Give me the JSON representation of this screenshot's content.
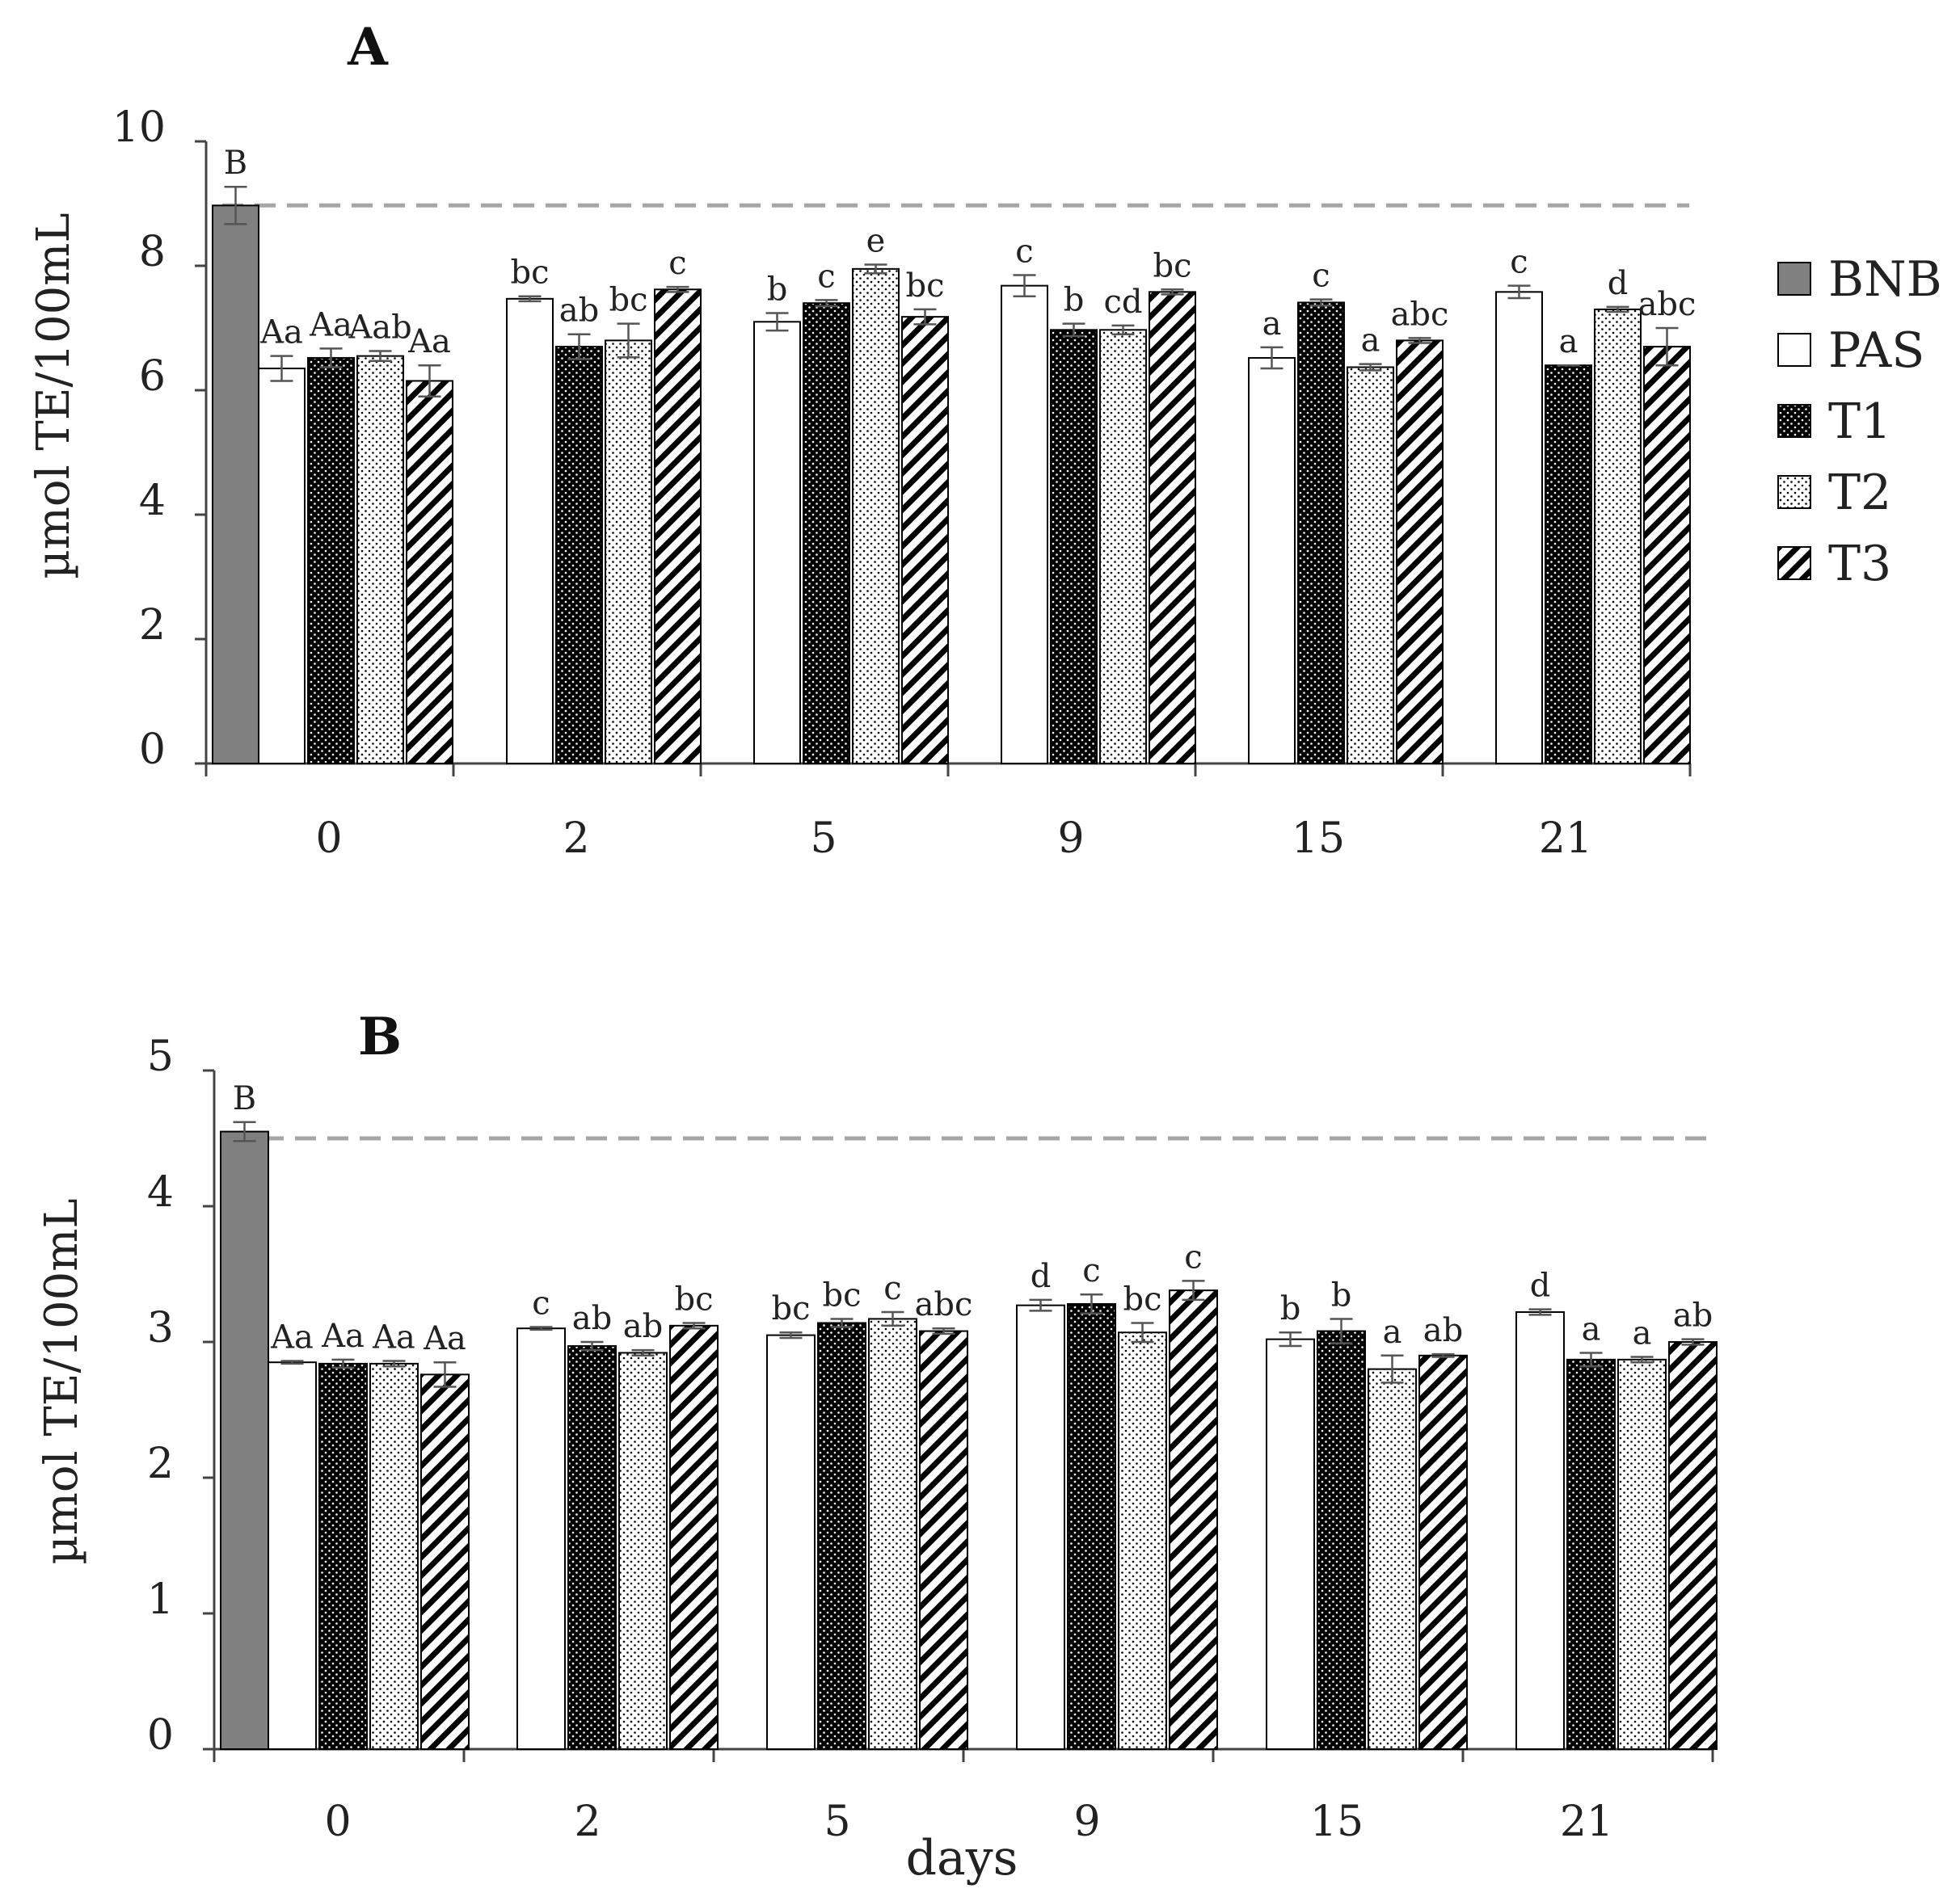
{
  "chart_data": [
    {
      "type": "bar",
      "title": "A",
      "xlabel": "",
      "ylabel": "µmol TE/100mL",
      "ylim": [
        0,
        10
      ],
      "yticks": [
        "0",
        "2",
        "4",
        "6",
        "8",
        "10"
      ],
      "categories": [
        "0",
        "2",
        "5",
        "9",
        "15",
        "21"
      ],
      "reference_line": 8.97,
      "baseline": {
        "name": "BNB",
        "category": "0",
        "value": 8.97,
        "error": 0.3,
        "letter": "B"
      },
      "series": [
        {
          "name": "PAS",
          "values": [
            6.35,
            7.47,
            7.1,
            7.68,
            6.52,
            7.58
          ],
          "errors": [
            0.2,
            0.04,
            0.14,
            0.17,
            0.17,
            0.1
          ],
          "letters": [
            "Aa",
            "bc",
            "b",
            "c",
            "a",
            "c"
          ]
        },
        {
          "name": "T1",
          "values": [
            6.52,
            6.7,
            7.4,
            6.97,
            7.41,
            6.4
          ],
          "errors": [
            0.15,
            0.2,
            0.05,
            0.1,
            0.05,
            0.0
          ],
          "letters": [
            "Aa",
            "ab",
            "c",
            "b",
            "c",
            "a"
          ]
        },
        {
          "name": "T2",
          "values": [
            6.55,
            6.8,
            7.95,
            6.97,
            6.37,
            7.3
          ],
          "errors": [
            0.08,
            0.27,
            0.07,
            0.07,
            0.05,
            0.04
          ],
          "letters": [
            "Aab",
            "bc",
            "e",
            "cd",
            "a",
            "d"
          ]
        },
        {
          "name": "T3",
          "values": [
            6.15,
            7.62,
            7.18,
            7.58,
            6.8,
            6.7
          ],
          "errors": [
            0.25,
            0.04,
            0.12,
            0.04,
            0.04,
            0.3
          ],
          "letters": [
            "Aa",
            "c",
            "bc",
            "bc",
            "abc",
            "abc"
          ]
        }
      ]
    },
    {
      "type": "bar",
      "title": "B",
      "xlabel": "days",
      "ylabel": "µmol TE/100mL",
      "ylim": [
        0,
        5
      ],
      "yticks": [
        "0",
        "1",
        "2",
        "3",
        "4",
        "5"
      ],
      "categories": [
        "0",
        "2",
        "5",
        "9",
        "15",
        "21"
      ],
      "reference_line": 4.5,
      "baseline": {
        "name": "BNB",
        "category": "0",
        "value": 4.55,
        "error": 0.07,
        "letter": "B"
      },
      "series": [
        {
          "name": "PAS",
          "values": [
            2.85,
            3.1,
            3.05,
            3.27,
            3.02,
            3.22
          ],
          "errors": [
            0.01,
            0.01,
            0.02,
            0.04,
            0.05,
            0.02
          ],
          "letters": [
            "Aa",
            "c",
            "bc",
            "d",
            "b",
            "d"
          ]
        },
        {
          "name": "T1",
          "values": [
            2.84,
            2.97,
            3.14,
            3.28,
            3.08,
            2.87
          ],
          "errors": [
            0.03,
            0.03,
            0.03,
            0.07,
            0.09,
            0.05
          ],
          "letters": [
            "Aa",
            "ab",
            "bc",
            "c",
            "b",
            "a"
          ]
        },
        {
          "name": "T2",
          "values": [
            2.84,
            2.92,
            3.17,
            3.07,
            2.8,
            2.87
          ],
          "errors": [
            0.02,
            0.02,
            0.05,
            0.07,
            0.1,
            0.02
          ],
          "letters": [
            "Aa",
            "ab",
            "c",
            "bc",
            "a",
            "a"
          ]
        },
        {
          "name": "T3",
          "values": [
            2.76,
            3.12,
            3.08,
            3.38,
            2.9,
            3.0
          ],
          "errors": [
            0.09,
            0.02,
            0.02,
            0.07,
            0.01,
            0.02
          ],
          "letters": [
            "Aa",
            "bc",
            "abc",
            "c",
            "ab",
            "ab"
          ]
        }
      ]
    }
  ],
  "legend": [
    {
      "label": "BNB",
      "pattern": "solid-gray"
    },
    {
      "label": "PAS",
      "pattern": "white"
    },
    {
      "label": "T1",
      "pattern": "black-dots"
    },
    {
      "label": "T2",
      "pattern": "white-dots"
    },
    {
      "label": "T3",
      "pattern": "diagonal-stripes"
    }
  ],
  "colors": {
    "bnb_fill": "#808080",
    "reference_line": "#a6a6a6",
    "axis": "#444444",
    "ink": "#000000"
  }
}
